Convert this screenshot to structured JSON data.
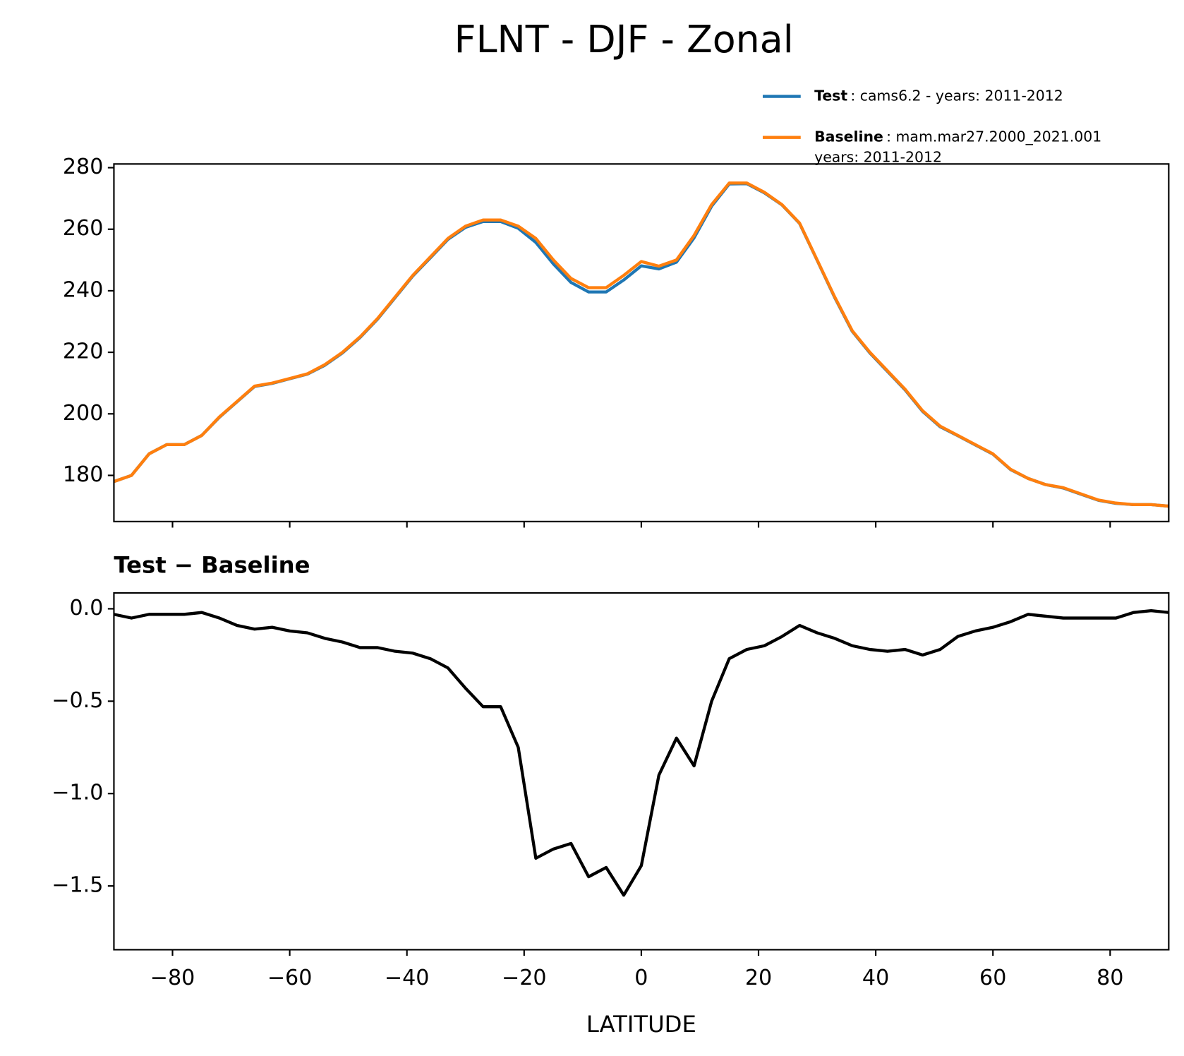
{
  "title": "FLNT - DJF - Zonal",
  "chart_data": [
    {
      "type": "line",
      "x": [
        -90,
        -87,
        -84,
        -81,
        -78,
        -75,
        -72,
        -69,
        -66,
        -63,
        -60,
        -57,
        -54,
        -51,
        -48,
        -45,
        -42,
        -39,
        -36,
        -33,
        -30,
        -27,
        -24,
        -21,
        -18,
        -15,
        -12,
        -9,
        -6,
        -3,
        0,
        3,
        6,
        9,
        12,
        15,
        18,
        21,
        24,
        27,
        30,
        33,
        36,
        39,
        42,
        45,
        48,
        51,
        54,
        57,
        60,
        63,
        66,
        69,
        72,
        75,
        78,
        81,
        84,
        87,
        90
      ],
      "series": [
        {
          "name": "Test",
          "description": [
            ": cams6.2 - years: 2011-2012"
          ],
          "color": "#1f77b4",
          "values": [
            178.0,
            180.0,
            187.0,
            190.0,
            190.0,
            193.0,
            198.9,
            203.9,
            208.9,
            209.9,
            211.4,
            212.9,
            215.8,
            219.8,
            224.8,
            230.8,
            237.8,
            244.8,
            250.7,
            256.7,
            260.6,
            262.5,
            262.5,
            260.3,
            255.7,
            248.7,
            242.7,
            239.6,
            239.6,
            243.5,
            248.1,
            247.1,
            249.3,
            257.2,
            267.5,
            274.7,
            274.8,
            271.8,
            267.9,
            261.9,
            249.9,
            237.8,
            226.8,
            219.8,
            213.8,
            207.8,
            200.8,
            195.8,
            192.9,
            189.9,
            186.9,
            181.9,
            179.0,
            177.0,
            175.9,
            173.9,
            171.9,
            170.9,
            170.5,
            170.5,
            170.0
          ]
        },
        {
          "name": "Baseline",
          "description": [
            ": mam.mar27.2000_2021.001",
            "years: 2011-2012"
          ],
          "color": "#ff7f0e",
          "values": [
            178,
            180,
            187,
            190,
            190,
            193,
            199,
            204,
            209,
            210,
            211.5,
            213,
            216,
            220,
            225,
            231,
            238,
            245,
            251,
            257,
            261,
            263,
            263,
            261,
            257,
            250,
            244,
            241,
            241,
            245,
            249.5,
            248,
            250,
            258,
            268,
            275,
            275,
            272,
            268,
            262,
            250,
            238,
            227,
            220,
            214,
            208,
            201,
            196,
            193,
            190,
            187,
            182,
            179,
            177,
            176,
            174,
            172,
            171,
            170.5,
            170.5,
            170
          ]
        }
      ],
      "xlim": [
        -90,
        90
      ],
      "xticks": [
        -80,
        -60,
        -40,
        -20,
        0,
        20,
        40,
        60,
        80
      ],
      "ylim": [
        165,
        281.2
      ],
      "yticks": [
        180,
        200,
        220,
        240,
        260,
        280
      ]
    },
    {
      "type": "line",
      "title": "Test − Baseline",
      "x_label": "LATITUDE",
      "x": [
        -90,
        -87,
        -84,
        -81,
        -78,
        -75,
        -72,
        -69,
        -66,
        -63,
        -60,
        -57,
        -54,
        -51,
        -48,
        -45,
        -42,
        -39,
        -36,
        -33,
        -30,
        -27,
        -24,
        -21,
        -18,
        -15,
        -12,
        -9,
        -6,
        -3,
        0,
        3,
        6,
        9,
        12,
        15,
        18,
        21,
        24,
        27,
        30,
        33,
        36,
        39,
        42,
        45,
        48,
        51,
        54,
        57,
        60,
        63,
        66,
        69,
        72,
        75,
        78,
        81,
        84,
        87,
        90
      ],
      "color": "#000000",
      "values": [
        -0.03,
        -0.05,
        -0.03,
        -0.03,
        -0.03,
        -0.02,
        -0.05,
        -0.09,
        -0.11,
        -0.1,
        -0.12,
        -0.13,
        -0.16,
        -0.18,
        -0.21,
        -0.21,
        -0.23,
        -0.24,
        -0.27,
        -0.32,
        -0.43,
        -0.53,
        -0.53,
        -0.75,
        -1.35,
        -1.3,
        -1.27,
        -1.45,
        -1.4,
        -1.55,
        -1.39,
        -0.9,
        -0.7,
        -0.85,
        -0.5,
        -0.27,
        -0.22,
        -0.2,
        -0.15,
        -0.09,
        -0.13,
        -0.16,
        -0.2,
        -0.22,
        -0.23,
        -0.22,
        -0.25,
        -0.22,
        -0.15,
        -0.12,
        -0.1,
        -0.07,
        -0.03,
        -0.04,
        -0.05,
        -0.05,
        -0.05,
        -0.05,
        -0.02,
        -0.01,
        -0.02
      ],
      "xlim": [
        -90,
        90
      ],
      "xticks": [
        {
          "value": -80,
          "label": "−80"
        },
        {
          "value": -60,
          "label": "−60"
        },
        {
          "value": -40,
          "label": "−40"
        },
        {
          "value": -20,
          "label": "−20"
        },
        0,
        20,
        40,
        60,
        80
      ],
      "ylim": [
        -1.845,
        0.086
      ],
      "yticks": [
        {
          "value": 0,
          "label": "0.0"
        },
        {
          "value": -0.5,
          "label": "−0.5"
        },
        {
          "value": -1,
          "label": "−1.0"
        },
        {
          "value": -1.5,
          "label": "−1.5"
        }
      ]
    }
  ]
}
